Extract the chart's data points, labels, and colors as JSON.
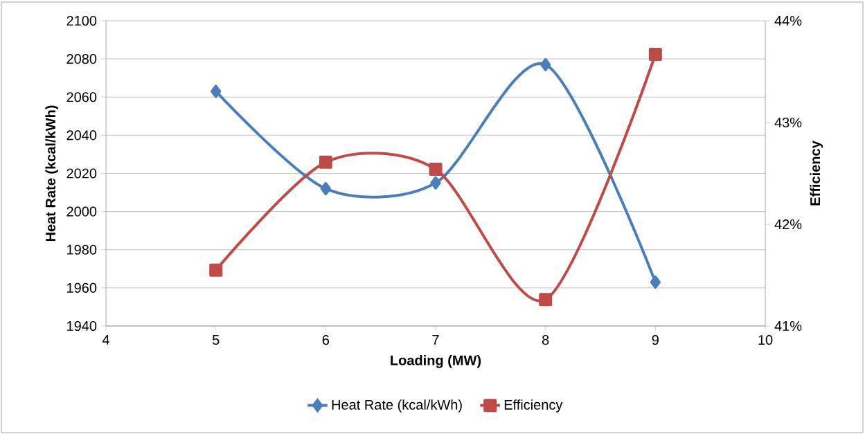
{
  "chart_data": {
    "type": "line",
    "xlabel": "Loading (MW)",
    "ylabel": "Heat Rate (kcal/kWh)",
    "y2label": "Efficiency",
    "x": [
      5,
      6,
      7,
      8,
      9
    ],
    "series": [
      {
        "name": "Heat Rate (kcal/kWh)",
        "color": "#4a7ebb",
        "marker": "diamond",
        "values": [
          2063,
          2012,
          2015,
          2077,
          1963
        ]
      },
      {
        "name": "Efficiency",
        "color": "#be4b48",
        "marker": "square",
        "axis": "y2",
        "values": [
          41.55,
          42.61,
          42.54,
          41.26,
          43.67
        ]
      }
    ],
    "xlim": [
      4,
      10
    ],
    "xticks": [
      4,
      5,
      6,
      7,
      8,
      9,
      10
    ],
    "ylim": [
      1940,
      2100
    ],
    "yticks": [
      1940,
      1960,
      1980,
      2000,
      2020,
      2040,
      2060,
      2080,
      2100
    ],
    "y2lim": [
      41,
      44
    ],
    "y2ticks": [
      {
        "value": 41,
        "label": "41%"
      },
      {
        "value": 42,
        "label": "42%"
      },
      {
        "value": 43,
        "label": "43%"
      },
      {
        "value": 44,
        "label": "44%"
      }
    ],
    "grid": "y",
    "legend": "bottom",
    "line_style": "solid"
  }
}
